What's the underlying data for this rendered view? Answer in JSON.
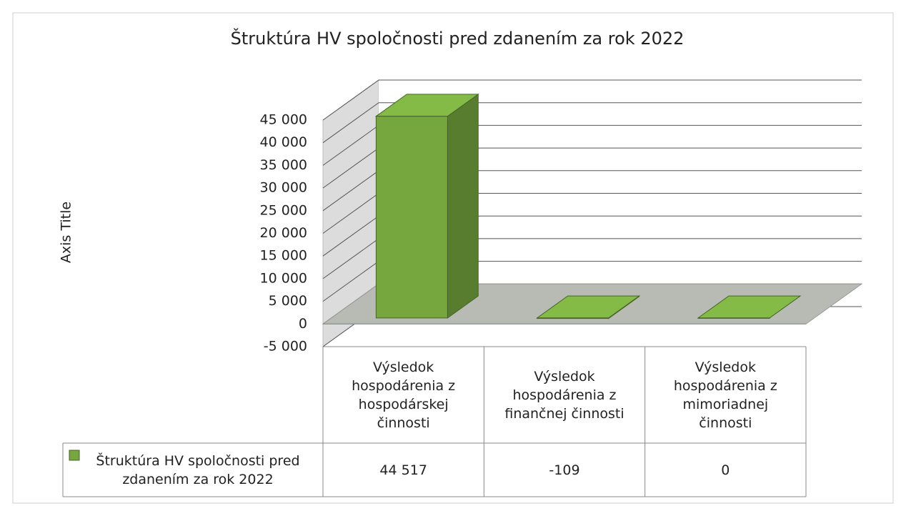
{
  "chart_data": {
    "type": "bar3d",
    "title": "Štruktúra HV spoločnosti pred zdanením za rok 2022",
    "y_axis_label": "Axis Title",
    "categories": [
      "Výsledok hospodárenia z hospodárskej činnosti",
      "Výsledok hospodárenia z finančnej činnosti",
      "Výsledok hospodárenia z mimoriadnej činnosti"
    ],
    "series": [
      {
        "name": "Štruktúra HV spoločnosti pred zdanením za rok 2022",
        "color": "#76a73f",
        "values": [
          44517,
          -109,
          0
        ],
        "value_labels": [
          "44 517",
          "-109",
          "0"
        ]
      }
    ],
    "ylim": [
      -5000,
      45000
    ],
    "yticks": [
      {
        "value": -5000,
        "label": "-5 000"
      },
      0,
      {
        "value": 5000,
        "label": "5 000"
      },
      {
        "value": 10000,
        "label": "10 000"
      },
      {
        "value": 15000,
        "label": "15 000"
      },
      {
        "value": 20000,
        "label": "20 000"
      },
      {
        "value": 25000,
        "label": "25 000"
      },
      {
        "value": 30000,
        "label": "30 000"
      },
      {
        "value": 35000,
        "label": "35 000"
      },
      {
        "value": 40000,
        "label": "40 000"
      },
      {
        "value": 45000,
        "label": "45 000"
      }
    ],
    "grid": true,
    "data_table": true
  }
}
